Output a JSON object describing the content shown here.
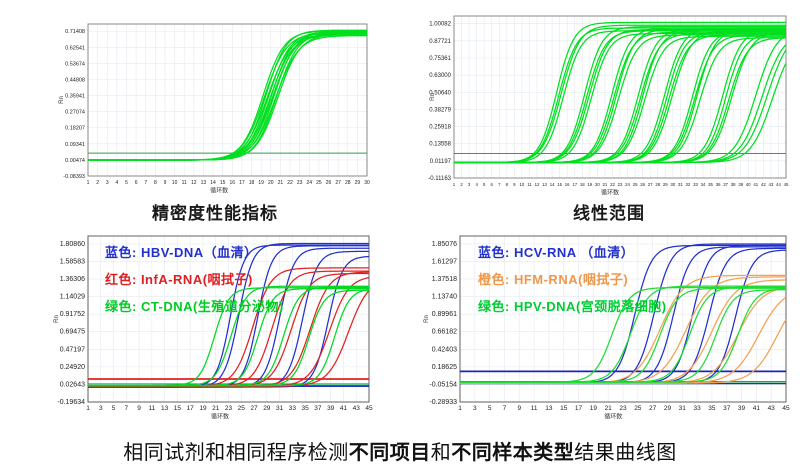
{
  "caption": {
    "segments": [
      {
        "text": "相同试剂和相同程序检测",
        "bold": false
      },
      {
        "text": "不同项目",
        "bold": true
      },
      {
        "text": "和",
        "bold": false
      },
      {
        "text": "不同样本类型",
        "bold": true
      },
      {
        "text": "结果曲线图",
        "bold": false
      }
    ]
  },
  "chart_data": [
    {
      "id": "precision",
      "type": "line",
      "title": "精密度性能指标",
      "xlabel": "循环数",
      "ylabel": "Rn",
      "x_min": 1,
      "x_max": 30,
      "x_tick_step": 1,
      "y_ticks": [
        "0.71408",
        "0.62541",
        "0.53674",
        "0.44808",
        "0.35941",
        "0.27074",
        "0.18207",
        "0.09341",
        "0.00474",
        "-0.08393"
      ],
      "grid": true,
      "grid_color": "#e3e9f2",
      "border_color": "#8a8a8a",
      "threshold_lines": [
        {
          "y": 0.042,
          "color": "#2f9e44",
          "width": 1
        }
      ],
      "series": [
        {
          "name": "precision-replicate",
          "color": "#00df1e",
          "k": 0.9,
          "baseline": 0.004,
          "curves": [
            {
              "ct": 19.2,
              "plateau": 0.712,
              "k": 0.92
            },
            {
              "ct": 19.35,
              "plateau": 0.7,
              "k": 0.88
            },
            {
              "ct": 19.5,
              "plateau": 0.716,
              "k": 0.95
            },
            {
              "ct": 19.65,
              "plateau": 0.694,
              "k": 0.85
            },
            {
              "ct": 19.8,
              "plateau": 0.708,
              "k": 0.9
            },
            {
              "ct": 19.95,
              "plateau": 0.69,
              "k": 0.87
            },
            {
              "ct": 20.05,
              "plateau": 0.704,
              "k": 0.93
            },
            {
              "ct": 20.2,
              "plateau": 0.698,
              "k": 0.86
            },
            {
              "ct": 20.35,
              "plateau": 0.71,
              "k": 0.9
            },
            {
              "ct": 20.5,
              "plateau": 0.686,
              "k": 0.84
            },
            {
              "ct": 20.6,
              "plateau": 0.702,
              "k": 0.91
            },
            {
              "ct": 20.75,
              "plateau": 0.695,
              "k": 0.88
            }
          ]
        }
      ],
      "legend": []
    },
    {
      "id": "linear-range",
      "type": "line",
      "title": "线性范围",
      "xlabel": "循环数",
      "ylabel": "Rn",
      "x_min": 1,
      "x_max": 45,
      "x_tick_step": 1,
      "y_ticks": [
        "1.00082",
        "0.87721",
        "0.75361",
        "0.63000",
        "0.50640",
        "0.38279",
        "0.25918",
        "0.13558",
        "0.01197",
        "-0.11163"
      ],
      "grid": true,
      "grid_color": "#e3e9f2",
      "border_color": "#8a8a8a",
      "threshold_lines": [
        {
          "y": 0.065,
          "color": "#2f9e44",
          "width": 1
        }
      ],
      "series": [
        {
          "name": "dilution-series",
          "color": "#00df1e",
          "k": 0.85,
          "baseline": 0.0,
          "curves": [
            {
              "ct": 14.6,
              "plateau": 1.01,
              "k": 0.88
            },
            {
              "ct": 14.9,
              "plateau": 0.97,
              "k": 0.85
            },
            {
              "ct": 15.2,
              "plateau": 0.99,
              "k": 0.82
            },
            {
              "ct": 15.5,
              "plateau": 0.95,
              "k": 0.86
            },
            {
              "ct": 18.3,
              "plateau": 0.98,
              "k": 0.87
            },
            {
              "ct": 18.6,
              "plateau": 0.95,
              "k": 0.84
            },
            {
              "ct": 18.9,
              "plateau": 0.96,
              "k": 0.82
            },
            {
              "ct": 19.2,
              "plateau": 0.93,
              "k": 0.85
            },
            {
              "ct": 21.9,
              "plateau": 0.97,
              "k": 0.86
            },
            {
              "ct": 22.2,
              "plateau": 0.94,
              "k": 0.83
            },
            {
              "ct": 22.5,
              "plateau": 0.96,
              "k": 0.85
            },
            {
              "ct": 22.8,
              "plateau": 0.92,
              "k": 0.82
            },
            {
              "ct": 25.4,
              "plateau": 0.96,
              "k": 0.85
            },
            {
              "ct": 25.7,
              "plateau": 0.93,
              "k": 0.83
            },
            {
              "ct": 26.0,
              "plateau": 0.95,
              "k": 0.86
            },
            {
              "ct": 26.3,
              "plateau": 0.91,
              "k": 0.82
            },
            {
              "ct": 28.9,
              "plateau": 0.97,
              "k": 0.84
            },
            {
              "ct": 29.2,
              "plateau": 0.94,
              "k": 0.86
            },
            {
              "ct": 29.5,
              "plateau": 0.92,
              "k": 0.83
            },
            {
              "ct": 29.9,
              "plateau": 0.95,
              "k": 0.81
            },
            {
              "ct": 32.6,
              "plateau": 0.95,
              "k": 0.85
            },
            {
              "ct": 32.9,
              "plateau": 0.92,
              "k": 0.82
            },
            {
              "ct": 33.2,
              "plateau": 0.96,
              "k": 0.84
            },
            {
              "ct": 33.6,
              "plateau": 0.9,
              "k": 0.81
            },
            {
              "ct": 36.6,
              "plateau": 0.96,
              "k": 0.83
            },
            {
              "ct": 37.0,
              "plateau": 0.93,
              "k": 0.85
            },
            {
              "ct": 37.4,
              "plateau": 0.9,
              "k": 0.82
            },
            {
              "ct": 37.8,
              "plateau": 0.94,
              "k": 0.8
            },
            {
              "ct": 41.0,
              "plateau": 0.97,
              "k": 0.72
            },
            {
              "ct": 41.8,
              "plateau": 0.94,
              "k": 0.7
            },
            {
              "ct": 42.5,
              "plateau": 0.96,
              "k": 0.68
            },
            {
              "ct": 43.2,
              "plateau": 0.92,
              "k": 0.7
            }
          ]
        }
      ],
      "legend": []
    },
    {
      "id": "multi-target-left",
      "type": "line",
      "title": "",
      "xlabel": "循环数",
      "ylabel": "Rn",
      "x_min": 1,
      "x_max": 45,
      "x_tick_step": 2,
      "y_ticks": [
        "1.80860",
        "1.58583",
        "1.36306",
        "1.14029",
        "0.91752",
        "0.69475",
        "0.47197",
        "0.24920",
        "0.02643",
        "-0.19634"
      ],
      "grid": true,
      "grid_color": "#e3e9f2",
      "border_color": "#606060",
      "threshold_lines": [
        {
          "y": 0.095,
          "color": "#e02020",
          "width": 1.8
        },
        {
          "y": 0.032,
          "color": "#00b33c",
          "width": 1.2
        },
        {
          "y": 0.006,
          "color": "#2230cc",
          "width": 1.8
        }
      ],
      "series": [
        {
          "name": "HBV-DNA",
          "color": "#2230cc",
          "k": 0.9,
          "baseline": -0.006,
          "curves": [
            {
              "ct": 23.3,
              "plateau": 1.8,
              "k": 0.95
            },
            {
              "ct": 24.6,
              "plateau": 1.82,
              "k": 0.9
            },
            {
              "ct": 27.6,
              "plateau": 1.79,
              "k": 0.92
            },
            {
              "ct": 31.0,
              "plateau": 1.76,
              "k": 0.9
            },
            {
              "ct": 34.6,
              "plateau": 1.72,
              "k": 0.88
            },
            {
              "ct": 38.6,
              "plateau": 1.66,
              "k": 0.9
            }
          ]
        },
        {
          "name": "InfA-RNA",
          "color": "#e02020",
          "k": 0.7,
          "baseline": 0.004,
          "curves": [
            {
              "ct": 26.8,
              "plateau": 1.5,
              "k": 0.7
            },
            {
              "ct": 29.8,
              "plateau": 1.46,
              "k": 0.72
            },
            {
              "ct": 32.8,
              "plateau": 1.43,
              "k": 0.7
            },
            {
              "ct": 35.8,
              "plateau": 1.45,
              "k": 0.68
            },
            {
              "ct": 38.8,
              "plateau": 1.4,
              "k": 0.66
            },
            {
              "ct": 41.8,
              "plateau": 1.38,
              "k": 0.62
            }
          ]
        },
        {
          "name": "CT-DNA",
          "color": "#00d922",
          "k": 0.85,
          "baseline": 0.012,
          "curves": [
            {
              "ct": 20.8,
              "plateau": 1.24,
              "k": 0.88
            },
            {
              "ct": 23.4,
              "plateau": 1.26,
              "k": 0.85
            },
            {
              "ct": 27.6,
              "plateau": 1.23,
              "k": 0.86
            },
            {
              "ct": 31.6,
              "plateau": 1.25,
              "k": 0.84
            },
            {
              "ct": 35.6,
              "plateau": 1.21,
              "k": 0.85
            },
            {
              "ct": 39.6,
              "plateau": 1.23,
              "k": 0.85
            }
          ]
        }
      ],
      "legend": [
        {
          "text": "蓝色: HBV-DNA（血清）",
          "color": "#2230cc"
        },
        {
          "text": "红色: InfA-RNA(咽拭子)",
          "color": "#e02020"
        },
        {
          "text": "绿色: CT-DNA(生殖道分泌物)",
          "color": "#00cc22"
        }
      ],
      "legend_pos": {
        "x": 55,
        "y": 12
      }
    },
    {
      "id": "multi-target-right",
      "type": "line",
      "title": "",
      "xlabel": "循环数",
      "ylabel": "Rn",
      "x_min": 1,
      "x_max": 45,
      "x_tick_step": 2,
      "y_ticks": [
        "1.85076",
        "1.61297",
        "1.37518",
        "1.13740",
        "0.89961",
        "0.66182",
        "0.42403",
        "0.18625",
        "-0.05154",
        "-0.28933"
      ],
      "grid": true,
      "grid_color": "#e3e9f2",
      "border_color": "#606060",
      "threshold_lines": [
        {
          "y": 0.125,
          "color": "#2222b2",
          "width": 1.8
        },
        {
          "y": -0.015,
          "color": "#00b344",
          "width": 1.4
        },
        {
          "y": -0.04,
          "color": "#223399",
          "width": 1.4
        }
      ],
      "series": [
        {
          "name": "HCV-RNA",
          "color": "#2230cc",
          "k": 0.9,
          "baseline": -0.03,
          "curves": [
            {
              "ct": 24.6,
              "plateau": 1.86,
              "k": 0.9
            },
            {
              "ct": 27.2,
              "plateau": 1.88,
              "k": 0.88
            },
            {
              "ct": 29.8,
              "plateau": 1.84,
              "k": 0.9
            },
            {
              "ct": 32.4,
              "plateau": 1.86,
              "k": 0.92
            },
            {
              "ct": 34.6,
              "plateau": 1.82,
              "k": 0.88
            },
            {
              "ct": 38.2,
              "plateau": 1.8,
              "k": 0.9
            }
          ]
        },
        {
          "name": "HFM-RNA",
          "color": "#f2a152",
          "k": 0.6,
          "baseline": -0.035,
          "curves": [
            {
              "ct": 28.0,
              "plateau": 1.46,
              "k": 0.62
            },
            {
              "ct": 31.5,
              "plateau": 1.44,
              "k": 0.6
            },
            {
              "ct": 35.0,
              "plateau": 1.4,
              "k": 0.62
            },
            {
              "ct": 38.5,
              "plateau": 1.32,
              "k": 0.6
            },
            {
              "ct": 41.3,
              "plateau": 1.3,
              "k": 0.58
            },
            {
              "ct": 43.8,
              "plateau": 1.28,
              "k": 0.6
            }
          ]
        },
        {
          "name": "HPV-DNA",
          "color": "#1fdd33",
          "k": 0.84,
          "baseline": -0.02,
          "curves": [
            {
              "ct": 21.5,
              "plateau": 1.28,
              "k": 0.85
            },
            {
              "ct": 24.0,
              "plateau": 1.3,
              "k": 0.82
            },
            {
              "ct": 28.0,
              "plateau": 1.27,
              "k": 0.84
            },
            {
              "ct": 32.0,
              "plateau": 1.29,
              "k": 0.83
            },
            {
              "ct": 35.5,
              "plateau": 1.25,
              "k": 0.85
            },
            {
              "ct": 38.5,
              "plateau": 1.27,
              "k": 0.84
            }
          ]
        }
      ],
      "legend": [
        {
          "text": "蓝色: HCV-RNA （血清）",
          "color": "#2230cc"
        },
        {
          "text": "橙色: HFM-RNA(咽拭子)",
          "color": "#f0974a"
        },
        {
          "text": "绿色: HPV-DNA(宫颈脱落细胞)",
          "color": "#00cc33"
        }
      ],
      "legend_pos": {
        "x": 58,
        "y": 12
      }
    }
  ]
}
